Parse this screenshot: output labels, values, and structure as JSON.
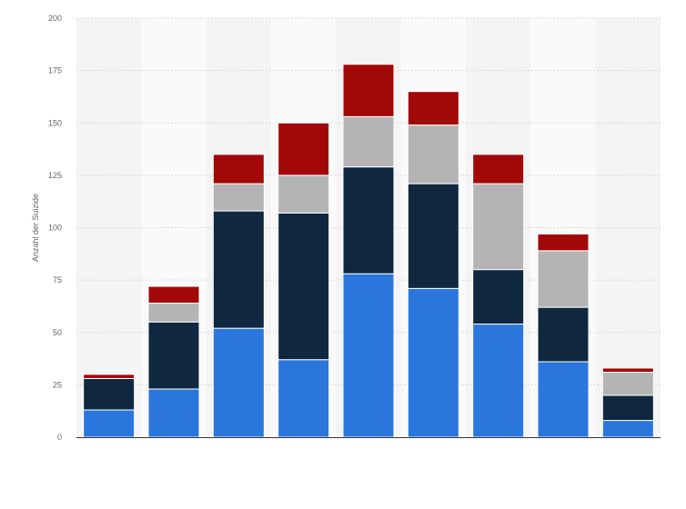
{
  "chart_data": {
    "type": "bar",
    "stacked": true,
    "title": "",
    "xlabel": "",
    "ylabel": "Anzahl der Suizide",
    "ylim": [
      0,
      200
    ],
    "yticks": [
      0,
      25,
      50,
      75,
      100,
      125,
      150,
      175,
      200
    ],
    "grid": true,
    "legend": "none",
    "categories": [
      "",
      "",
      "",
      "",
      "",
      "",
      "",
      "",
      ""
    ],
    "series": [
      {
        "color": "#2a76dd",
        "values": [
          13,
          23,
          52,
          37,
          78,
          71,
          54,
          36,
          8
        ]
      },
      {
        "color": "#0f2840",
        "values": [
          15,
          32,
          56,
          70,
          51,
          50,
          26,
          26,
          12
        ]
      },
      {
        "color": "#b4b4b4",
        "values": [
          0,
          9,
          13,
          18,
          24,
          28,
          41,
          27,
          11
        ]
      },
      {
        "color": "#a30808",
        "values": [
          2,
          8,
          14,
          25,
          25,
          16,
          14,
          8,
          2
        ]
      }
    ]
  }
}
